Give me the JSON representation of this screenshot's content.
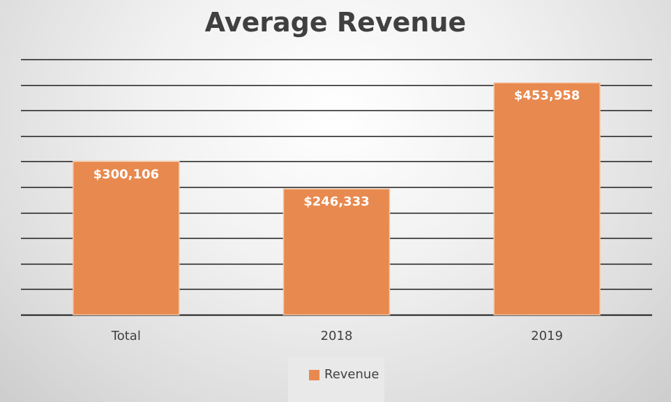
{
  "chart_data": {
    "type": "bar",
    "title": "Average Revenue",
    "categories": [
      "Total",
      "2018",
      "2019"
    ],
    "series": [
      {
        "name": "Revenue",
        "values": [
          300106,
          246333,
          453958
        ],
        "labels": [
          "$300,106",
          "$246,333",
          "$453,958"
        ],
        "color": "#e8894f"
      }
    ],
    "ylim": [
      0,
      500000
    ],
    "y_gridline_step": 50000,
    "grid": true,
    "legend_position": "bottom"
  }
}
